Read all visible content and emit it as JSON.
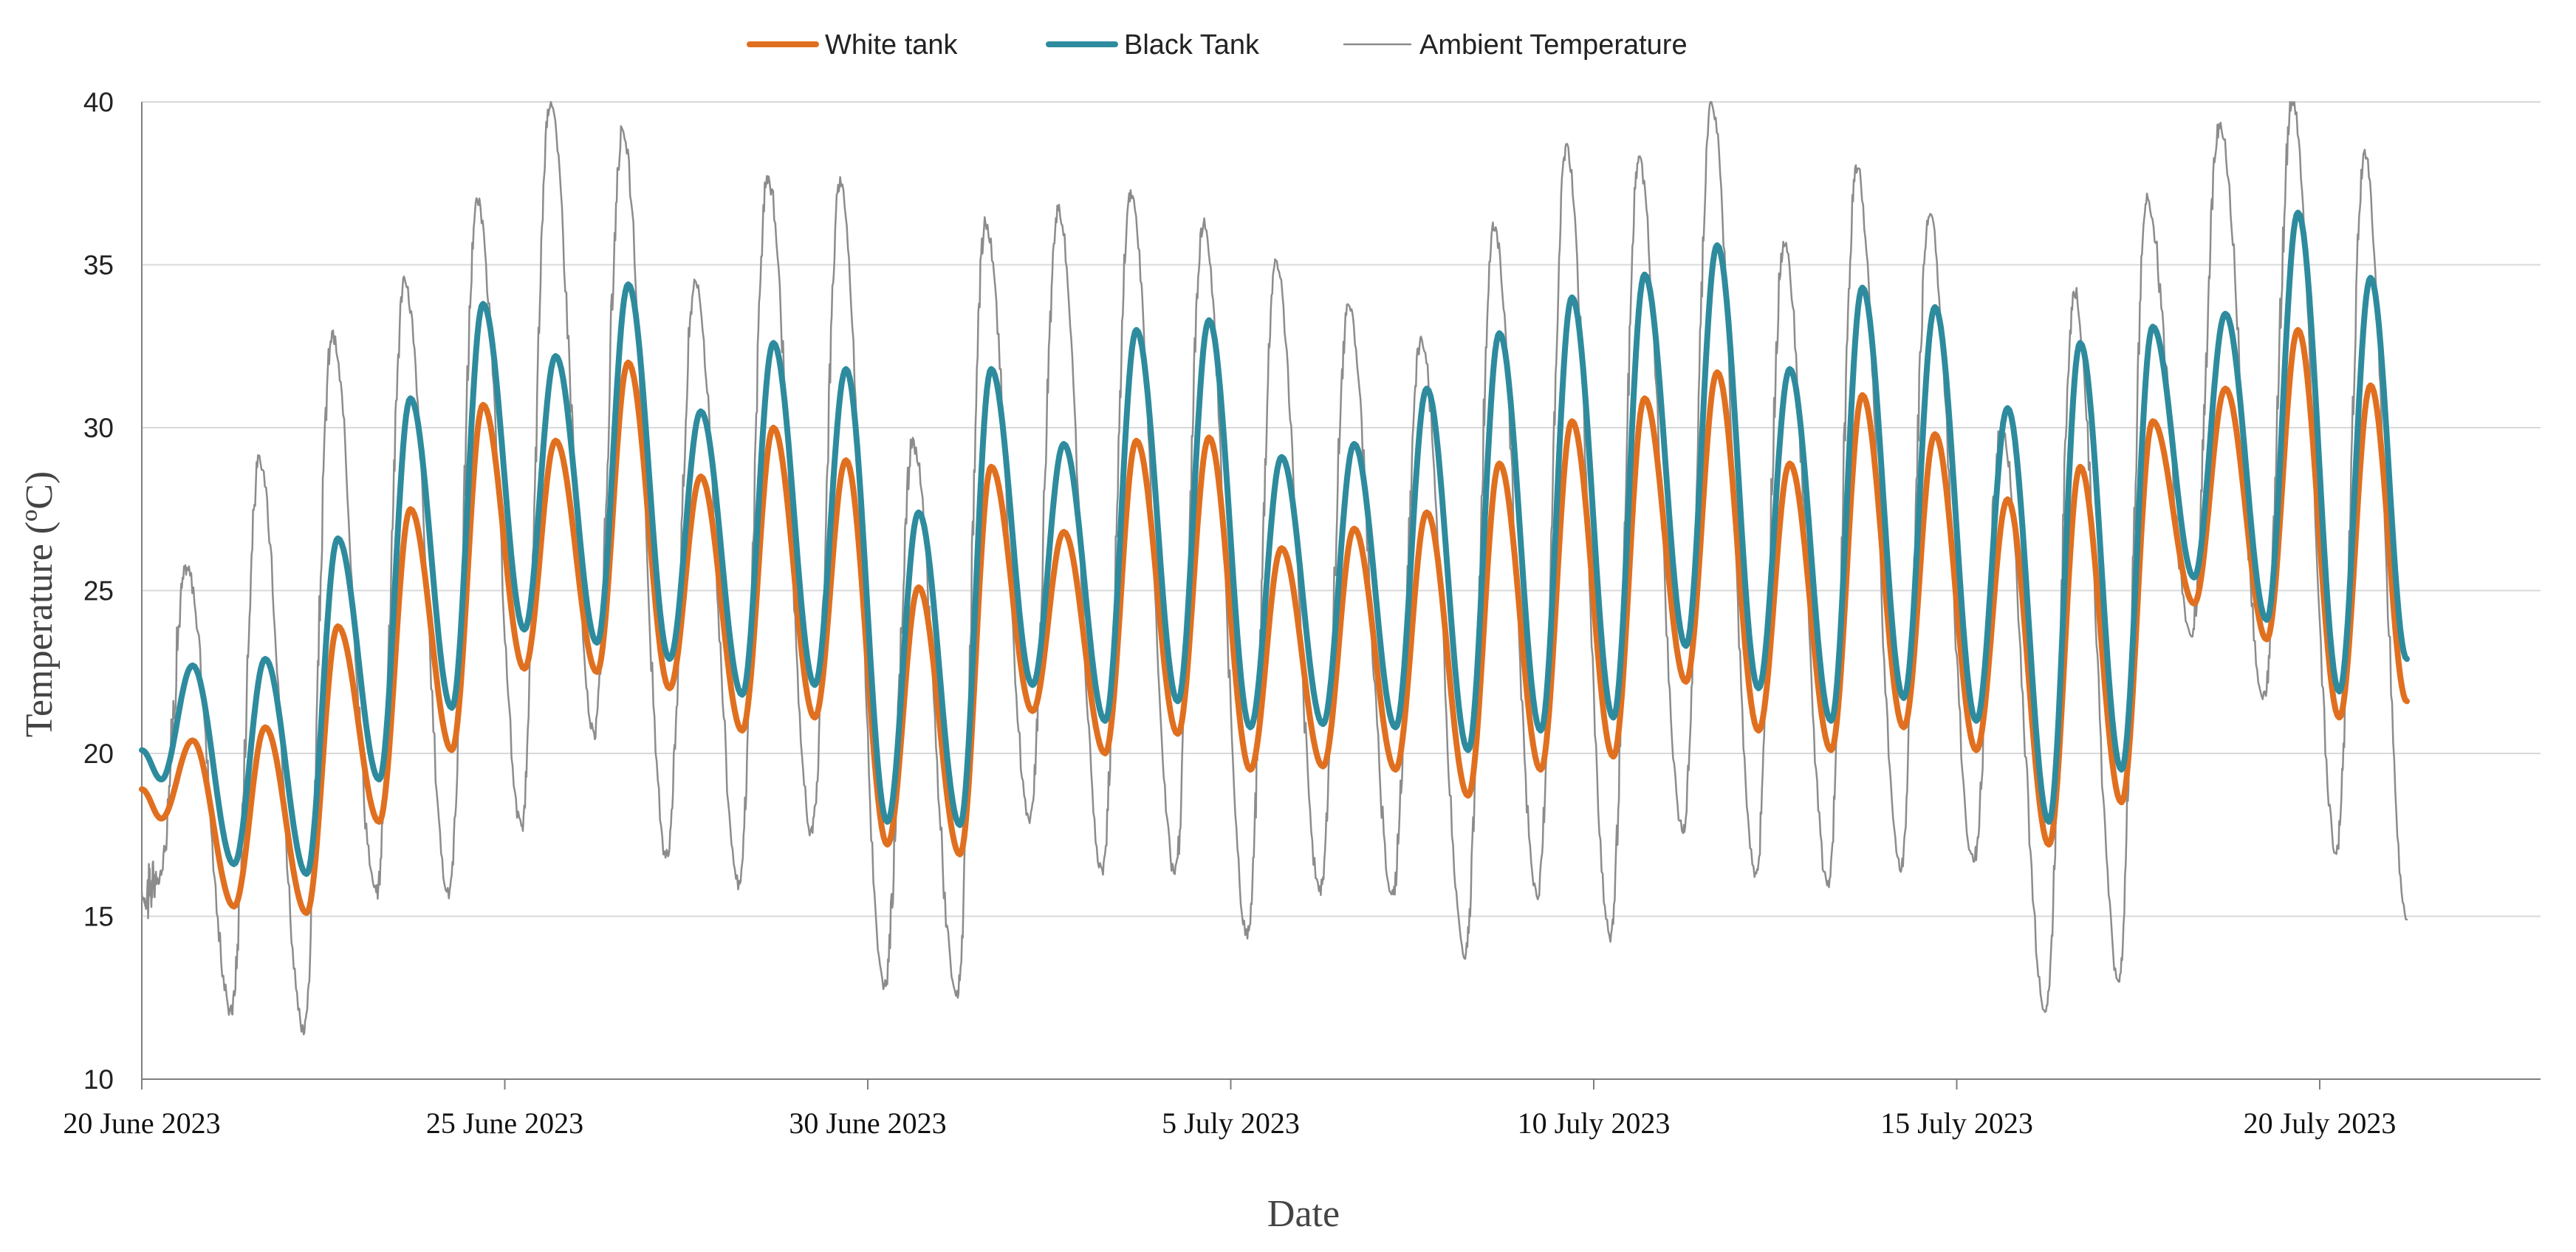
{
  "chart_data": {
    "type": "line",
    "title": "",
    "xlabel": "Date",
    "ylabel": "Temperature (ºC)",
    "ylim": [
      10,
      40
    ],
    "yticks": [
      10,
      15,
      20,
      25,
      30,
      35,
      40
    ],
    "x_unit": "days since 20 June 2023",
    "xlim": [
      0,
      33.3
    ],
    "xticks": [
      {
        "day": 0,
        "label": "20 June 2023"
      },
      {
        "day": 5,
        "label": "25 June 2023"
      },
      {
        "day": 10,
        "label": "30 June 2023"
      },
      {
        "day": 15,
        "label": "5 July 2023"
      },
      {
        "day": 20,
        "label": "10 July 2023"
      },
      {
        "day": 25,
        "label": "15 July 2023"
      },
      {
        "day": 30,
        "label": "20 July 2023"
      }
    ],
    "grid": "horizontal",
    "legend_position": "top-center",
    "series": [
      {
        "name": "White tank",
        "color": "#e07020",
        "daily_min_temp": [
          18.0,
          15.3,
          15.1,
          17.9,
          20.1,
          22.6,
          22.5,
          22.0,
          20.7,
          21.1,
          17.2,
          16.9,
          21.3,
          20.0,
          20.6,
          19.5,
          19.6,
          19.5,
          18.7,
          19.5,
          19.9,
          22.2,
          20.7,
          20.1,
          20.8,
          20.1,
          17.2,
          18.5,
          24.6,
          23.5,
          21.1
        ],
        "daily_max_temp": [
          20.4,
          20.8,
          23.9,
          27.5,
          30.7,
          29.6,
          32.0,
          28.5,
          30.0,
          29.0,
          25.1,
          28.8,
          26.8,
          29.6,
          29.7,
          26.3,
          26.9,
          27.4,
          28.9,
          30.2,
          30.9,
          31.7,
          28.9,
          31.0,
          29.8,
          27.8,
          28.8,
          30.2,
          31.2,
          33.0,
          31.3
        ],
        "end_value": 21.6
      },
      {
        "name": "Black Tank",
        "color": "#2e8b9e",
        "daily_min_temp": [
          19.2,
          16.6,
          16.3,
          19.2,
          21.4,
          23.8,
          23.4,
          22.9,
          21.8,
          22.1,
          17.9,
          17.8,
          22.1,
          21.0,
          21.6,
          20.8,
          20.9,
          20.8,
          20.1,
          20.7,
          21.1,
          23.3,
          22.0,
          21.0,
          21.7,
          21.0,
          17.9,
          19.5,
          25.4,
          24.1,
          21.9
        ],
        "daily_max_temp": [
          22.7,
          22.9,
          26.6,
          30.9,
          33.8,
          32.2,
          34.4,
          30.5,
          32.6,
          31.8,
          27.4,
          31.8,
          29.5,
          33.0,
          33.3,
          29.1,
          29.5,
          31.2,
          32.9,
          34.0,
          34.7,
          35.6,
          31.8,
          34.3,
          33.7,
          30.6,
          32.6,
          33.1,
          33.5,
          36.6,
          34.6
        ],
        "end_value": 22.9
      },
      {
        "name": "Ambient Temperature",
        "color": "#8c8c8c",
        "daily_min_temp": [
          16.1,
          12.1,
          11.5,
          15.7,
          15.7,
          17.8,
          20.6,
          16.9,
          16.0,
          17.6,
          12.8,
          12.6,
          18.0,
          16.4,
          16.4,
          14.5,
          15.8,
          15.7,
          13.8,
          15.6,
          14.4,
          17.6,
          16.3,
          16.0,
          16.5,
          16.7,
          12.1,
          13.1,
          23.6,
          21.7,
          17.0
        ],
        "daily_max_temp": [
          25.7,
          29.0,
          32.8,
          34.5,
          36.9,
          40.0,
          39.1,
          34.5,
          37.7,
          37.5,
          29.5,
          36.3,
          36.7,
          37.2,
          36.3,
          35.1,
          33.8,
          32.7,
          36.2,
          38.6,
          38.2,
          40.0,
          35.6,
          38.0,
          36.6,
          30.0,
          34.2,
          37.0,
          39.3,
          40.0,
          38.4
        ],
        "end_value": 14.9
      }
    ]
  }
}
